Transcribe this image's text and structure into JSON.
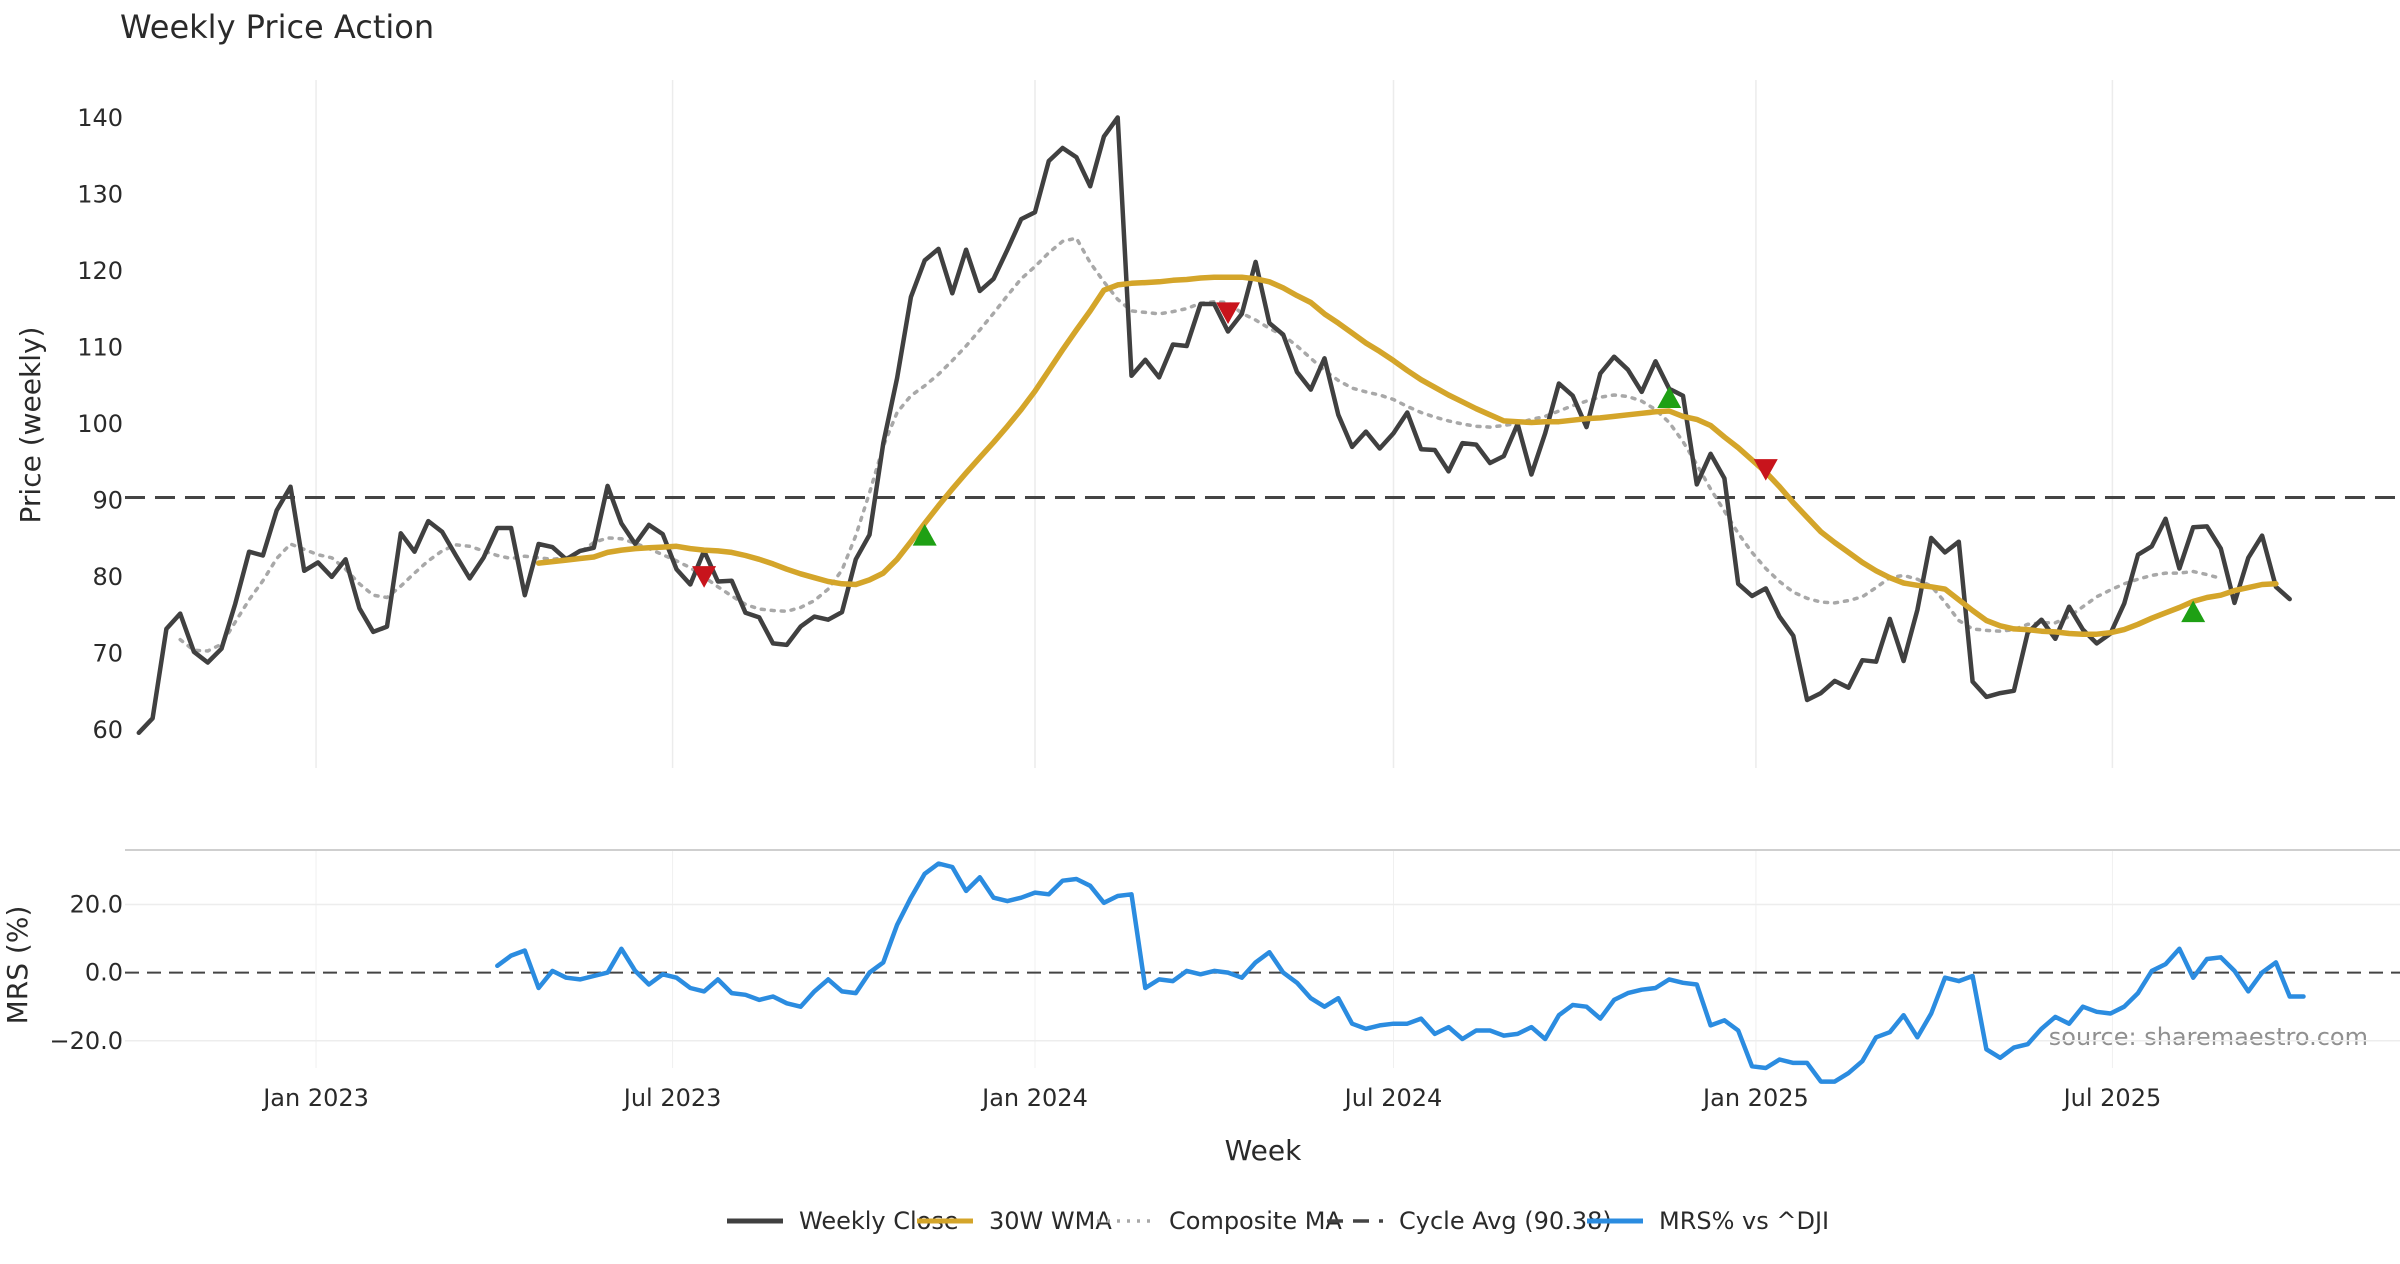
{
  "chart_data": [
    {
      "panel": "price",
      "type": "line",
      "title": "Weekly Price Action",
      "ylabel": "Price (weekly)",
      "ylim": [
        55,
        145
      ],
      "yticks": [
        60,
        70,
        80,
        90,
        100,
        110,
        120,
        130,
        140
      ],
      "xlim": [
        "2022-09-26",
        "2025-11-24"
      ],
      "grid": "vertical",
      "x_start": "2022-10-03",
      "x_step_days": 7,
      "series": [
        {
          "name": "Weekly Close",
          "color": "#404040",
          "style": "solid",
          "values": [
            59.6,
            61.5,
            73.2,
            75.2,
            70.2,
            68.8,
            70.6,
            76.5,
            83.3,
            82.8,
            88.7,
            91.8,
            80.8,
            81.9,
            80.0,
            82.3,
            75.9,
            72.8,
            73.5,
            85.7,
            83.3,
            87.3,
            85.9,
            82.8,
            79.8,
            82.5,
            86.4,
            86.4,
            77.6,
            84.3,
            83.9,
            82.3,
            83.4,
            83.8,
            91.9,
            87.0,
            84.3,
            86.8,
            85.6,
            81.0,
            79.0,
            83.4,
            79.4,
            79.5,
            75.3,
            74.7,
            71.3,
            71.1,
            73.5,
            74.8,
            74.4,
            75.4,
            82.3,
            85.5,
            97.5,
            106.0,
            116.6,
            121.4,
            122.9,
            117.1,
            122.8,
            117.4,
            119.0,
            122.8,
            126.8,
            127.7,
            134.4,
            136.1,
            134.9,
            131.1,
            137.6,
            140.1,
            106.3,
            108.4,
            106.1,
            110.4,
            110.2,
            115.7,
            115.7,
            112.1,
            114.4,
            121.2,
            113.2,
            111.7,
            106.8,
            104.5,
            108.6,
            101.2,
            97.0,
            99.0,
            96.8,
            98.8,
            101.5,
            96.7,
            96.6,
            93.8,
            97.5,
            97.3,
            94.9,
            95.8,
            100.0,
            93.4,
            98.8,
            105.3,
            103.7,
            99.6,
            106.6,
            108.8,
            107.1,
            104.2,
            108.2,
            104.6,
            103.7,
            92.1,
            96.1,
            92.9,
            79.1,
            77.5,
            78.5,
            74.8,
            72.3,
            63.9,
            64.8,
            66.4,
            65.5,
            69.1,
            68.9,
            74.5,
            69.0,
            75.7,
            85.1,
            83.2,
            84.6,
            66.3,
            64.3,
            64.8,
            65.1,
            72.7,
            74.4,
            71.9,
            76.1,
            73.1,
            71.3,
            72.6,
            76.5,
            82.9,
            84.0,
            87.6,
            81.1,
            86.5,
            86.6,
            83.7,
            76.6,
            82.5,
            85.4,
            78.7,
            77.1
          ]
        },
        {
          "name": "30W WMA",
          "color": "#d4a52a",
          "style": "solid",
          "offset": 29,
          "values": [
            81.8,
            82.0,
            82.2,
            82.4,
            82.6,
            83.2,
            83.5,
            83.7,
            83.8,
            83.9,
            84.0,
            83.7,
            83.5,
            83.4,
            83.2,
            82.8,
            82.3,
            81.7,
            81.0,
            80.4,
            79.9,
            79.4,
            79.1,
            79.0,
            79.6,
            80.5,
            82.3,
            84.6,
            87.0,
            89.3,
            91.5,
            93.6,
            95.6,
            97.6,
            99.7,
            101.9,
            104.3,
            107.0,
            109.7,
            112.3,
            114.8,
            117.5,
            118.2,
            118.4,
            118.5,
            118.6,
            118.8,
            118.9,
            119.1,
            119.2,
            119.2,
            119.2,
            119.0,
            118.6,
            117.8,
            116.8,
            115.9,
            114.4,
            113.2,
            111.9,
            110.6,
            109.5,
            108.3,
            107.0,
            105.8,
            104.8,
            103.8,
            102.9,
            102.0,
            101.2,
            100.4,
            100.3,
            100.2,
            100.3,
            100.3,
            100.5,
            100.7,
            100.8,
            101.0,
            101.2,
            101.4,
            101.6,
            101.7,
            101.0,
            100.6,
            99.8,
            98.3,
            96.9,
            95.3,
            93.7,
            91.8,
            89.7,
            87.8,
            85.9,
            84.5,
            83.2,
            81.9,
            80.8,
            79.9,
            79.2,
            78.9,
            78.7,
            78.4,
            77.0,
            75.6,
            74.3,
            73.6,
            73.2,
            73.1,
            72.9,
            72.8,
            72.6,
            72.5,
            72.5,
            72.7,
            73.1,
            73.8,
            74.6,
            75.3,
            76.0,
            76.8,
            77.3,
            77.6,
            78.2,
            78.6,
            79.0,
            79.1
          ]
        },
        {
          "name": "Composite MA",
          "color": "#a8a8a8",
          "style": "dotted",
          "offset": 3,
          "values": [
            71.8,
            70.4,
            70.3,
            71.2,
            74.1,
            77.0,
            79.5,
            82.4,
            84.3,
            83.6,
            82.9,
            82.5,
            81.0,
            79.1,
            77.6,
            77.3,
            78.8,
            80.5,
            82.1,
            83.4,
            84.2,
            84.0,
            83.4,
            82.8,
            82.4,
            82.7,
            82.5,
            82.3,
            82.5,
            83.2,
            84.5,
            85.1,
            85.0,
            84.4,
            83.7,
            82.9,
            82.1,
            81.2,
            80.0,
            78.7,
            77.5,
            76.4,
            75.8,
            75.6,
            75.5,
            76.0,
            76.9,
            78.4,
            80.9,
            85.4,
            91.0,
            97.1,
            101.5,
            103.7,
            105.0,
            106.5,
            108.3,
            110.2,
            112.3,
            114.5,
            116.8,
            119.0,
            120.6,
            122.4,
            123.9,
            124.3,
            121.1,
            118.6,
            116.3,
            114.8,
            114.6,
            114.4,
            114.7,
            115.1,
            115.8,
            116.0,
            115.9,
            114.5,
            113.6,
            112.5,
            111.6,
            110.2,
            108.6,
            107.0,
            105.7,
            104.7,
            104.2,
            103.8,
            103.2,
            102.3,
            101.5,
            100.9,
            100.4,
            100.0,
            99.7,
            99.6,
            99.8,
            100.1,
            100.6,
            101.0,
            101.7,
            102.4,
            103.0,
            103.5,
            103.8,
            103.6,
            103.0,
            101.9,
            100.2,
            97.7,
            94.7,
            91.5,
            88.6,
            85.7,
            83.2,
            81.1,
            79.4,
            78.0,
            77.2,
            76.7,
            76.6,
            76.9,
            77.4,
            78.6,
            79.9,
            80.2,
            79.7,
            78.8,
            76.7,
            74.3,
            73.2,
            73.0,
            72.9,
            73.1,
            73.8,
            74.0,
            74.0,
            74.8,
            76.1,
            77.4,
            78.3,
            79.1,
            79.7,
            80.2,
            80.5,
            80.5,
            80.7,
            80.3,
            79.8
          ]
        },
        {
          "name": "Cycle Avg (90.38)",
          "color": "#444444",
          "style": "dashed",
          "constant": 90.38
        }
      ],
      "markers": [
        {
          "week_index": 41,
          "type": "sell",
          "color": "#c8141c",
          "y": 80.0
        },
        {
          "week_index": 57,
          "type": "buy",
          "color": "#1ea014",
          "y": 85.5
        },
        {
          "week_index": 79,
          "type": "sell",
          "color": "#c8141c",
          "y": 114.5
        },
        {
          "week_index": 111,
          "type": "buy",
          "color": "#1ea014",
          "y": 103.5
        },
        {
          "week_index": 118,
          "type": "sell",
          "color": "#c8141c",
          "y": 94.0
        },
        {
          "week_index": 149,
          "type": "buy",
          "color": "#1ea014",
          "y": 75.5
        }
      ]
    },
    {
      "panel": "mrs",
      "type": "line",
      "ylabel": "MRS (%)",
      "ylim": [
        -28,
        36
      ],
      "yticks": [
        -20,
        0,
        20
      ],
      "ytick_labels": [
        "−20.0",
        "0.0",
        "20.0"
      ],
      "xlabel": "Week",
      "xticks": [
        {
          "date": "2023-01-01",
          "label": "Jan 2023"
        },
        {
          "date": "2023-07-01",
          "label": "Jul 2023"
        },
        {
          "date": "2024-01-01",
          "label": "Jan 2024"
        },
        {
          "date": "2024-07-01",
          "label": "Jul 2024"
        },
        {
          "date": "2025-01-01",
          "label": "Jan 2025"
        },
        {
          "date": "2025-07-01",
          "label": "Jul 2025"
        }
      ],
      "series": [
        {
          "name": "MRS% vs ^DJI",
          "color": "#2b8ce0",
          "style": "solid",
          "offset": 26,
          "values": [
            2.0,
            5.0,
            6.5,
            -4.5,
            0.5,
            -1.5,
            -2.0,
            -1.0,
            0.0,
            7.0,
            0.5,
            -3.5,
            -0.5,
            -1.5,
            -4.5,
            -5.5,
            -2.0,
            -6.0,
            -6.5,
            -8.0,
            -7.0,
            -9.0,
            -10.0,
            -5.5,
            -2.0,
            -5.5,
            -6.0,
            0.0,
            3.0,
            14.0,
            22.0,
            29.0,
            32.0,
            31.0,
            24.0,
            28.0,
            22.0,
            21.0,
            22.0,
            23.5,
            23.0,
            27.0,
            27.5,
            25.5,
            20.5,
            22.5,
            23.0,
            -4.5,
            -2.0,
            -2.5,
            0.5,
            -0.5,
            0.5,
            0.0,
            -1.5,
            3.0,
            6.0,
            0.0,
            -3.0,
            -7.5,
            -10.0,
            -7.5,
            -15.0,
            -16.5,
            -15.5,
            -15.0,
            -15.0,
            -13.5,
            -18.0,
            -16.0,
            -19.5,
            -17.0,
            -17.0,
            -18.5,
            -18.0,
            -16.0,
            -19.5,
            -12.5,
            -9.5,
            -10.0,
            -13.5,
            -8.0,
            -6.0,
            -5.0,
            -4.5,
            -2.0,
            -3.0,
            -3.5,
            -15.5,
            -14.0,
            -17.0,
            -27.5,
            -28.0,
            -25.5,
            -26.5,
            -26.5,
            -32.0,
            -32.0,
            -29.5,
            -26.0,
            -19.0,
            -17.5,
            -12.5,
            -19.0,
            -12.0,
            -1.5,
            -2.5,
            -1.0,
            -22.5,
            -25.0,
            -22.0,
            -21.0,
            -16.5,
            -13.0,
            -15.0,
            -10.0,
            -11.5,
            -12.0,
            -10.0,
            -6.0,
            0.5,
            2.5,
            7.0,
            -1.5,
            4.0,
            4.5,
            0.5,
            -5.5,
            0.0,
            3.0,
            -7.0,
            -7.0
          ]
        }
      ],
      "annotations": [
        {
          "text": "source: sharemaestro.com",
          "color": "#909090"
        }
      ]
    }
  ],
  "legend": {
    "placement": "bottom-center",
    "items": [
      {
        "label": "Weekly Close",
        "color": "#404040",
        "style": "solid"
      },
      {
        "label": "30W WMA",
        "color": "#d4a52a",
        "style": "solid"
      },
      {
        "label": "Composite MA",
        "color": "#a8a8a8",
        "style": "dotted"
      },
      {
        "label": "Cycle Avg (90.38)",
        "color": "#444444",
        "style": "dashed"
      },
      {
        "label": "MRS% vs ^DJI",
        "color": "#2b8ce0",
        "style": "solid"
      }
    ]
  }
}
